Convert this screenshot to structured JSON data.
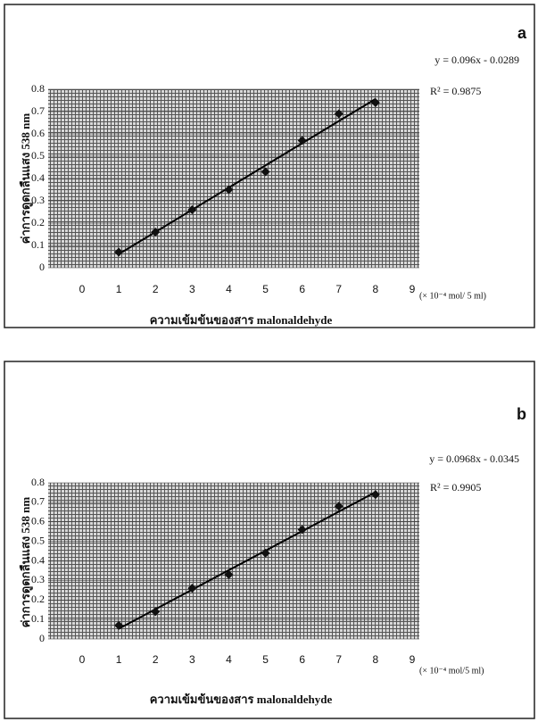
{
  "chart_data": [
    {
      "type": "scatter",
      "panel": "a",
      "equation": "y = 0.096x - 0.0289",
      "r_squared": "R² = 0.9875",
      "x_label": "ความเข้มข้นของสาร malonaldehyde",
      "x_unit": "(× 10⁻⁴ mol/ 5 ml)",
      "y_label": "ค่าการดูดกลืนแสง 538 nm",
      "x": [
        1,
        2,
        3,
        4,
        5,
        6,
        7,
        8
      ],
      "values": [
        0.07,
        0.16,
        0.26,
        0.35,
        0.43,
        0.57,
        0.69,
        0.74
      ],
      "color": "#111111",
      "xlim": [
        0,
        9
      ],
      "xticks": [
        0,
        1,
        2,
        3,
        4,
        5,
        6,
        7,
        8,
        9
      ],
      "ylim": [
        0,
        0.8
      ],
      "yticks": [
        0,
        0.1,
        0.2,
        0.3,
        0.4,
        0.5,
        0.6,
        0.7,
        0.8
      ],
      "grid": true,
      "trendline": true
    },
    {
      "type": "scatter",
      "panel": "b",
      "equation": "y = 0.0968x - 0.0345",
      "r_squared": "R² = 0.9905",
      "x_label": "ความเข้มข้นของสาร malonaldehyde",
      "x_unit": "(× 10⁻⁴ mol/5 ml)",
      "y_label": "ค่าการดูดกลืนแสง 538 nm",
      "x": [
        1,
        2,
        3,
        4,
        5,
        6,
        7,
        8
      ],
      "values": [
        0.07,
        0.14,
        0.26,
        0.33,
        0.44,
        0.56,
        0.68,
        0.74
      ],
      "color": "#111111",
      "xlim": [
        0,
        9
      ],
      "xticks": [
        0,
        1,
        2,
        3,
        4,
        5,
        6,
        7,
        8,
        9
      ],
      "ylim": [
        0,
        0.8
      ],
      "yticks": [
        0,
        0.1,
        0.2,
        0.3,
        0.4,
        0.5,
        0.6,
        0.7,
        0.8
      ],
      "grid": true,
      "trendline": true
    }
  ]
}
